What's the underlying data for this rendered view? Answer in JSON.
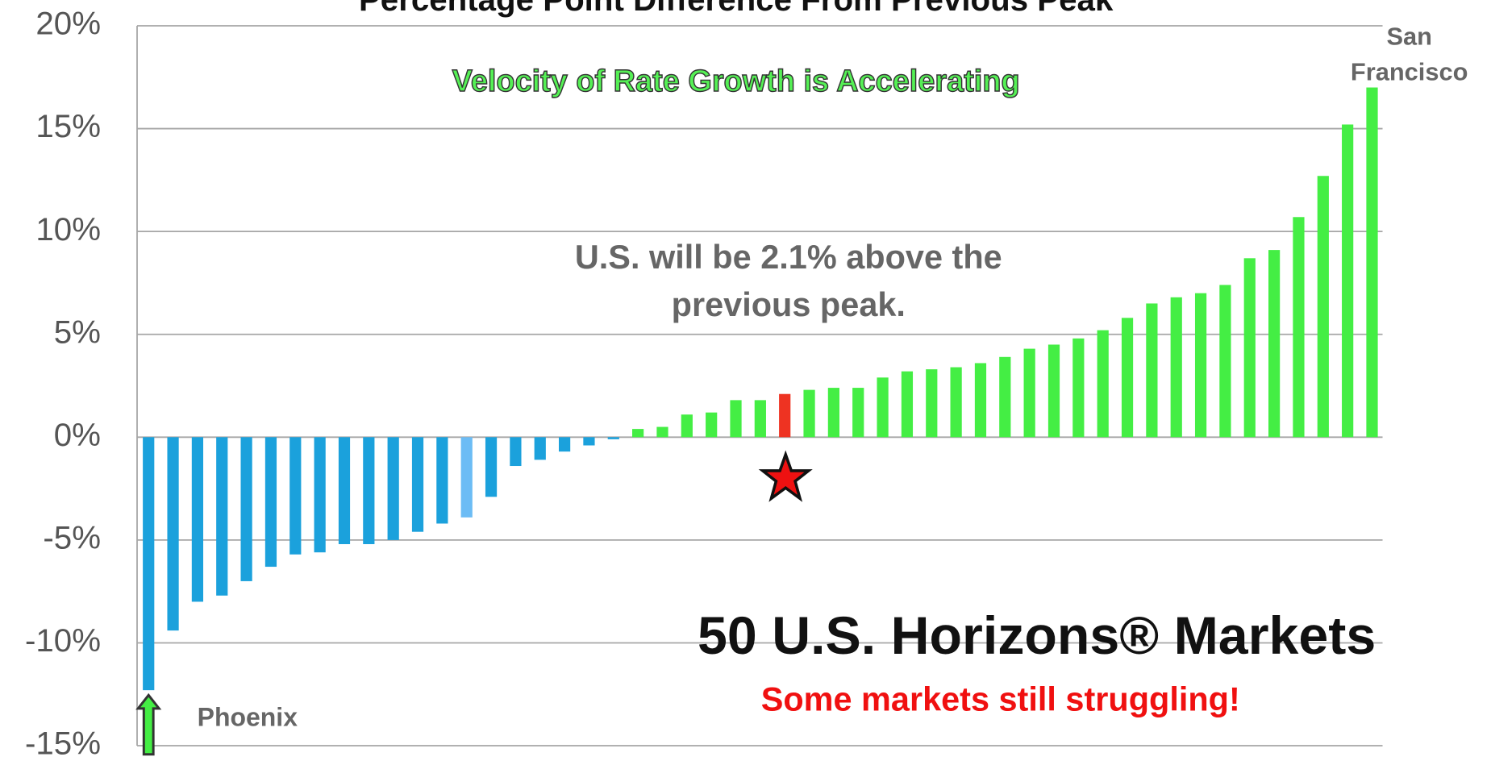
{
  "chart_data": {
    "type": "bar",
    "title": "Percentage Point Difference From Previous Peak",
    "subtitle": "Velocity of Rate Growth is Accelerating",
    "annotations": [
      "U.S. will be 2.1% above the previous peak.",
      "50 U.S. Horizons® Markets",
      "Some markets still struggling!"
    ],
    "categories": [
      "Phoenix",
      null,
      null,
      null,
      null,
      null,
      null,
      null,
      null,
      null,
      null,
      null,
      null,
      null,
      null,
      null,
      null,
      null,
      null,
      null,
      null,
      null,
      null,
      null,
      null,
      null,
      null,
      null,
      null,
      null,
      null,
      null,
      null,
      null,
      null,
      null,
      null,
      null,
      null,
      null,
      null,
      null,
      null,
      null,
      null,
      null,
      null,
      null,
      null,
      null,
      "San Francisco"
    ],
    "values": [
      -12.3,
      -9.4,
      -8.0,
      -7.7,
      -7.0,
      -6.3,
      -5.7,
      -5.6,
      -5.2,
      -5.2,
      -5.0,
      -4.6,
      -4.2,
      -3.9,
      -2.9,
      -1.4,
      -1.1,
      -0.7,
      -0.4,
      -0.1,
      0.4,
      0.5,
      1.1,
      1.2,
      1.8,
      1.8,
      2.1,
      2.3,
      2.4,
      2.4,
      2.9,
      3.2,
      3.3,
      3.4,
      3.6,
      3.9,
      4.3,
      4.5,
      4.8,
      5.2,
      5.8,
      6.5,
      6.8,
      7.0,
      7.4,
      8.7,
      9.1,
      10.7,
      12.7,
      15.2,
      17.0
    ],
    "colors": [
      "#1ba1dc",
      "#1ba1dc",
      "#1ba1dc",
      "#1ba1dc",
      "#1ba1dc",
      "#1ba1dc",
      "#1ba1dc",
      "#1ba1dc",
      "#1ba1dc",
      "#1ba1dc",
      "#1ba1dc",
      "#1ba1dc",
      "#1ba1dc",
      "#6cbcf5",
      "#1ba1dc",
      "#1ba1dc",
      "#1ba1dc",
      "#1ba1dc",
      "#1ba1dc",
      "#1ba1dc",
      "#44ee44",
      "#44ee44",
      "#44ee44",
      "#44ee44",
      "#44ee44",
      "#44ee44",
      "#ee3322",
      "#44ee44",
      "#44ee44",
      "#44ee44",
      "#44ee44",
      "#44ee44",
      "#44ee44",
      "#44ee44",
      "#44ee44",
      "#44ee44",
      "#44ee44",
      "#44ee44",
      "#44ee44",
      "#44ee44",
      "#44ee44",
      "#44ee44",
      "#44ee44",
      "#44ee44",
      "#44ee44",
      "#44ee44",
      "#44ee44",
      "#44ee44",
      "#44ee44",
      "#44ee44",
      "#44ee44"
    ],
    "ylim": [
      -15,
      20
    ],
    "yticks": [
      {
        "value": -15,
        "label": "-15%"
      },
      {
        "value": -10,
        "label": "-10%"
      },
      {
        "value": -5,
        "label": "-5%"
      },
      {
        "value": 0,
        "label": "0%"
      },
      {
        "value": 5,
        "label": "5%"
      },
      {
        "value": 10,
        "label": "10%"
      },
      {
        "value": 15,
        "label": "15%"
      },
      {
        "value": 20,
        "label": "20%"
      }
    ],
    "grid": true
  }
}
